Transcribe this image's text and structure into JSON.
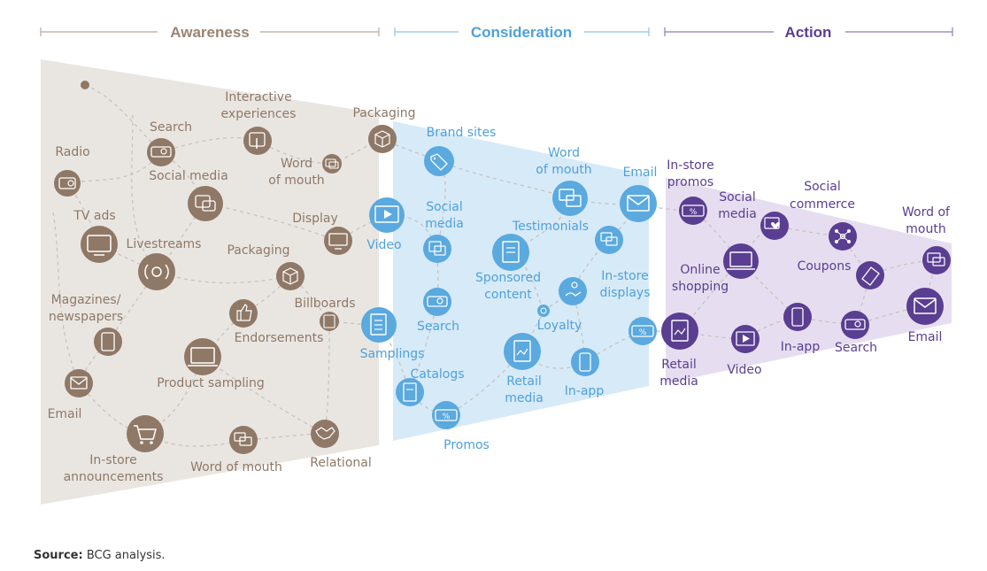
{
  "colors": {
    "awareness_bg": "#e9e6e2",
    "awareness_node": "#8f7866",
    "awareness_text": "#8f7866",
    "consideration_bg": "#d7eaf8",
    "consideration_node": "#5aa9df",
    "consideration_text": "#4ea1db",
    "action_bg": "#e6def0",
    "action_node": "#5a3e91",
    "action_text": "#5a3e91",
    "path": "#c8c2bd"
  },
  "phases": {
    "awareness": "Awareness",
    "consideration": "Consideration",
    "action": "Action"
  },
  "awareness_labels": {
    "radio": "Radio",
    "search": "Search",
    "interactive_1": "Interactive",
    "interactive_2": "experiences",
    "packaging_top": "Packaging",
    "social_media": "Social media",
    "word_of_mouth_1": "Word",
    "word_of_mouth_2": "of mouth",
    "tv_ads": "TV ads",
    "livestreams": "Livestreams",
    "display": "Display",
    "packaging_mid": "Packaging",
    "magazines_1": "Magazines/",
    "magazines_2": "newspapers",
    "billboards": "Billboards",
    "endorsements": "Endorsements",
    "product_sampling": "Product sampling",
    "email": "Email",
    "instore_1": "In-store",
    "instore_2": "announcements",
    "word_of_mouth_bottom": "Word of mouth",
    "relational": "Relational"
  },
  "consideration_labels": {
    "brand_sites": "Brand sites",
    "word_of_mouth_1": "Word",
    "word_of_mouth_2": "of mouth",
    "email": "Email",
    "social_media_1": "Social",
    "social_media_2": "media",
    "testimonials": "Testimonials",
    "video": "Video",
    "sponsored_1": "Sponsored",
    "sponsored_2": "content",
    "instore_displays_1": "In-store",
    "instore_displays_2": "displays",
    "search": "Search",
    "loyalty": "Loyalty",
    "samplings": "Samplings",
    "catalogs": "Catalogs",
    "retail_media_1": "Retail",
    "retail_media_2": "media",
    "in_app": "In-app",
    "promos": "Promos"
  },
  "action_labels": {
    "instore_promos_1": "In-store",
    "instore_promos_2": "promos",
    "social_media_1": "Social",
    "social_media_2": "media",
    "social_commerce_1": "Social",
    "social_commerce_2": "commerce",
    "word_of_mouth_1": "Word of",
    "word_of_mouth_2": "mouth",
    "online_shopping_1": "Online",
    "online_shopping_2": "shopping",
    "coupons": "Coupons",
    "retail_media_1": "Retail",
    "retail_media_2": "media",
    "video": "Video",
    "in_app": "In-app",
    "search": "Search",
    "email": "Email"
  },
  "source": {
    "label": "Source:",
    "text": " BCG analysis."
  },
  "icons": [
    "radio-icon",
    "search-icon",
    "touchscreen-icon",
    "box-icon",
    "chat-bubble-icon",
    "tv-icon",
    "livestream-icon",
    "monitor-icon",
    "magazine-icon",
    "billboard-icon",
    "thumbs-up-icon",
    "laptop-icon",
    "email-icon",
    "cart-icon",
    "handshake-icon",
    "tag-icon",
    "video-icon",
    "document-icon",
    "loyalty-icon",
    "clipboard-icon",
    "catalog-icon",
    "phone-icon",
    "coupon-icon",
    "network-icon",
    "heart-icon"
  ]
}
